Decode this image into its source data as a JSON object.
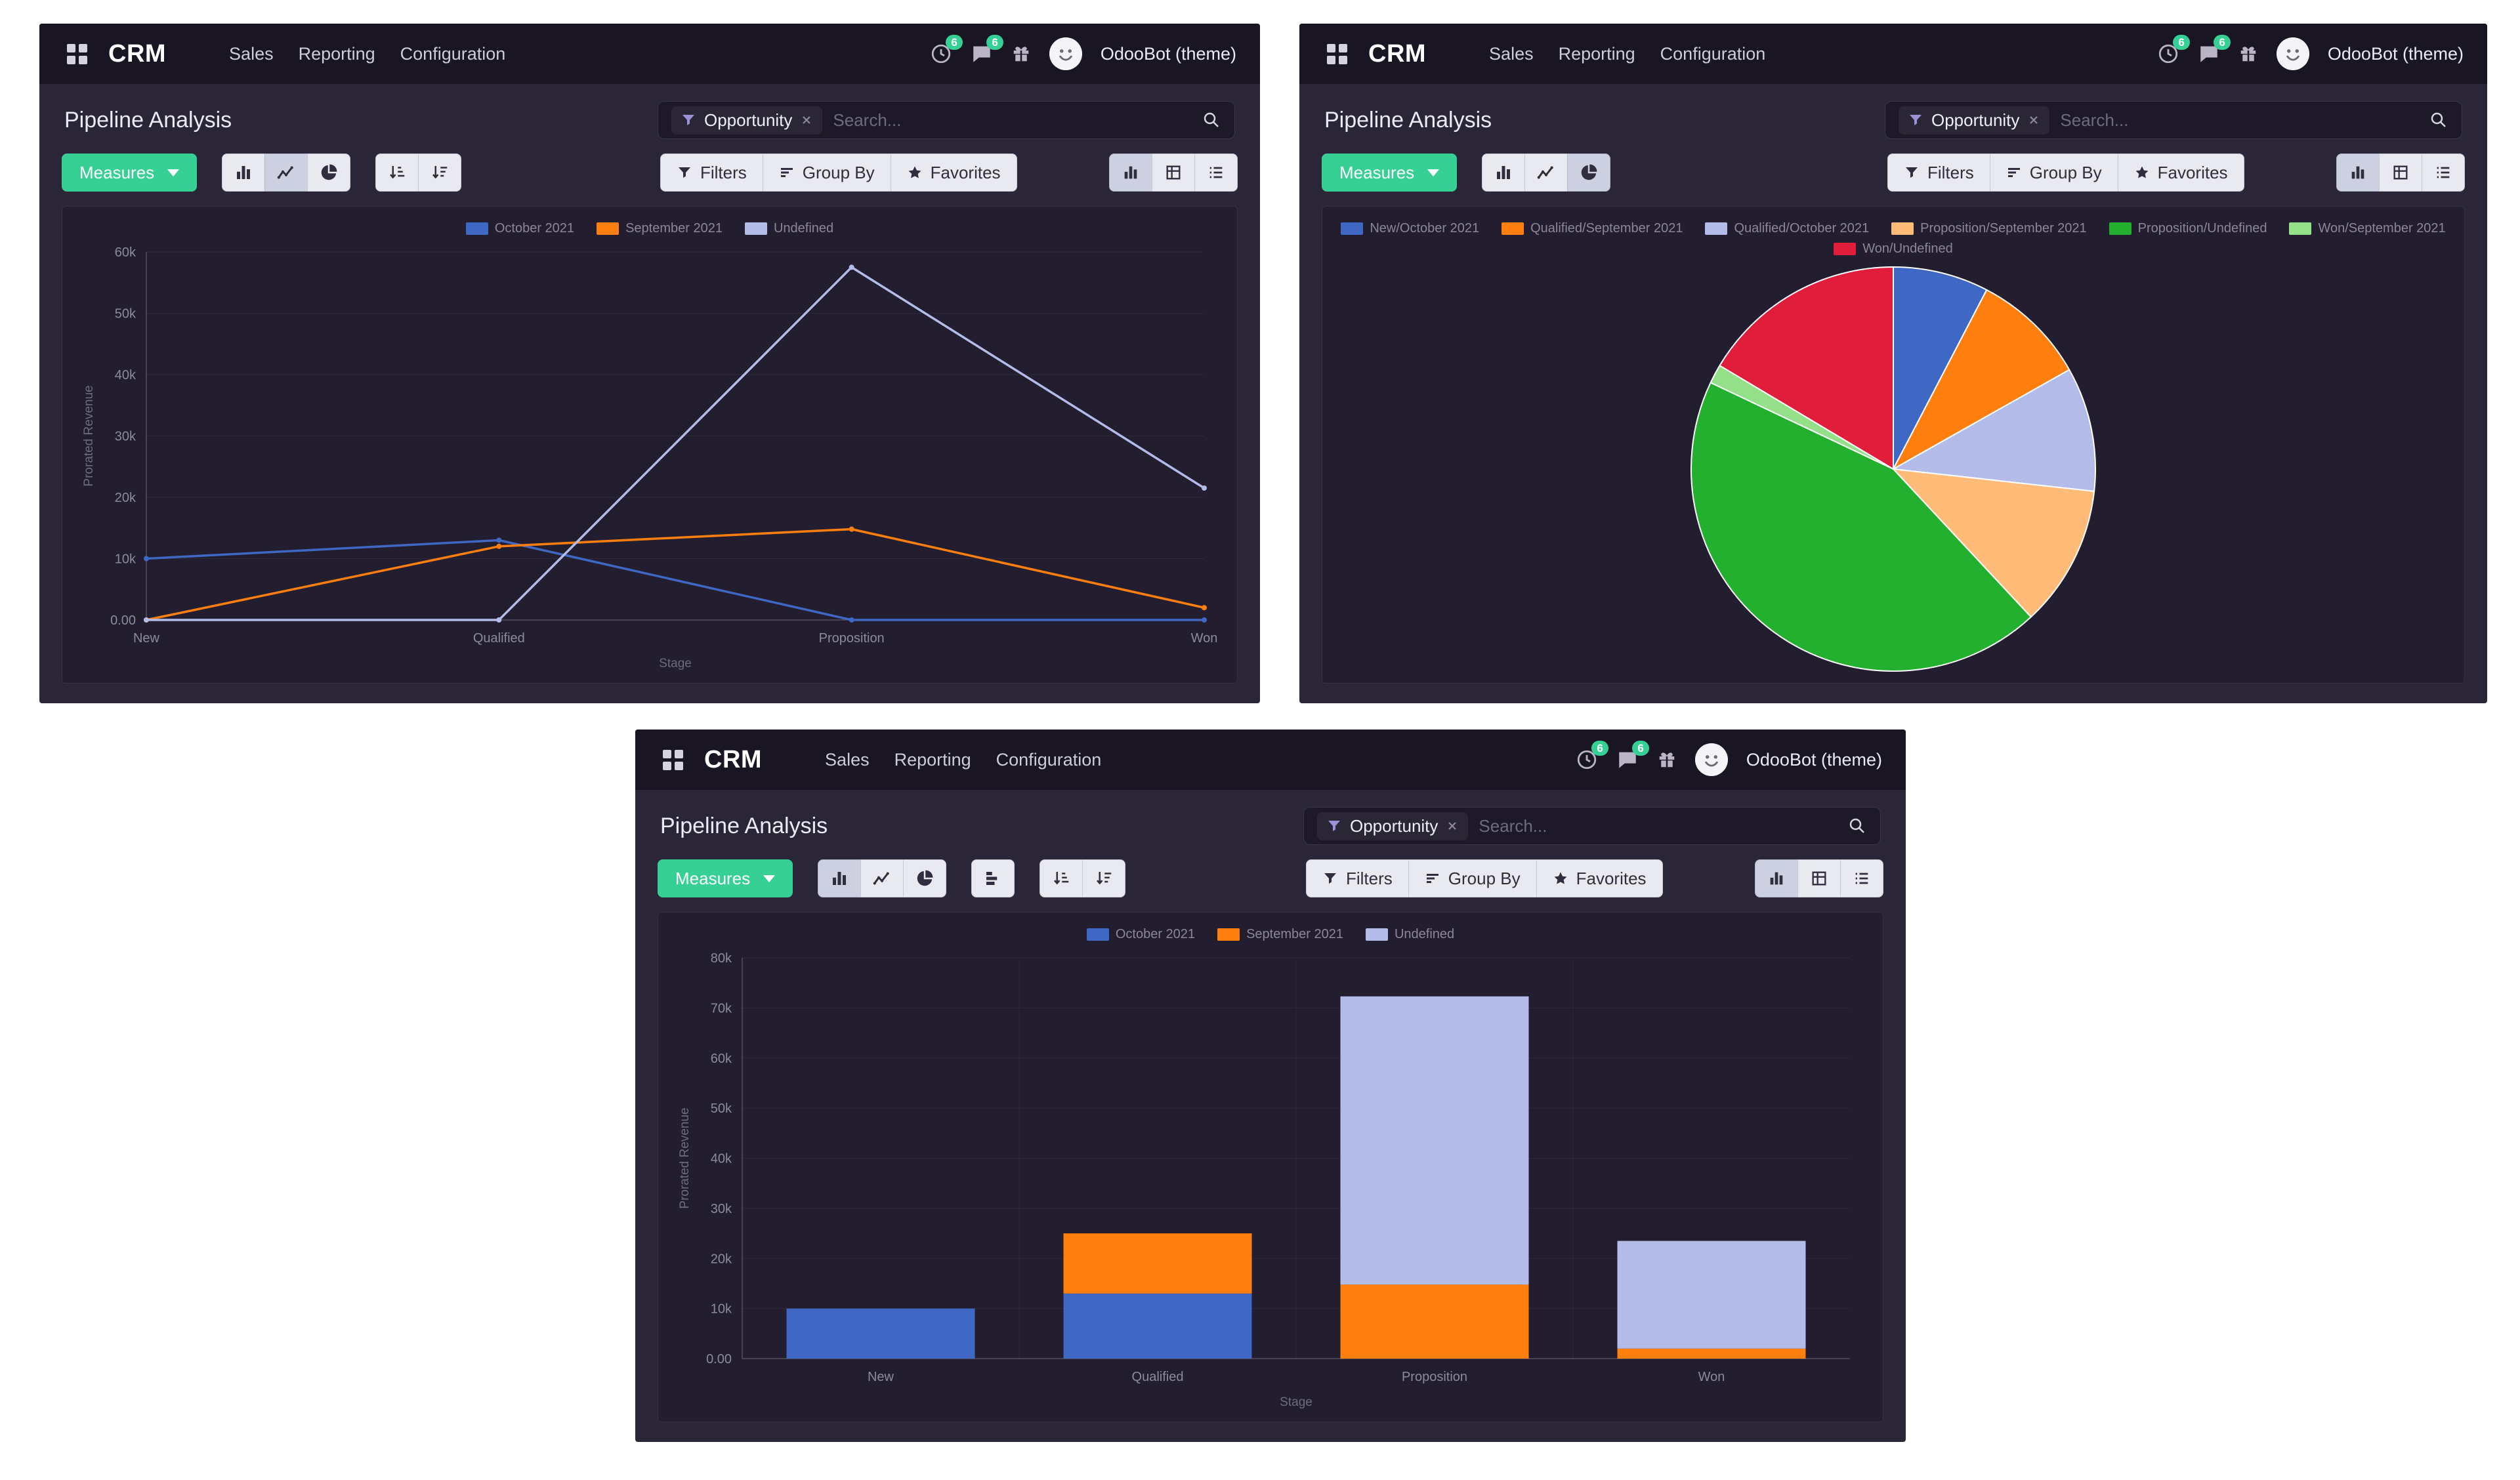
{
  "page": {
    "background": "#ffffff"
  },
  "windows": [
    {
      "navbar": {
        "app_name": "CRM",
        "menu_items": [
          "Sales",
          "Reporting",
          "Configuration"
        ],
        "activity_badge": "6",
        "message_badge": "6",
        "user_name": "OdooBot (theme)"
      },
      "header": {
        "title": "Pipeline Analysis"
      },
      "search": {
        "facet": "Opportunity",
        "placeholder": "Search..."
      },
      "controls": {
        "measures": "Measures",
        "filters": "Filters",
        "group_by": "Group By",
        "favorites": "Favorites"
      },
      "toolbar": {
        "active_chart": "line",
        "active_view": "graph",
        "show_stacked": false,
        "show_sort": true
      },
      "chart_index": 0
    },
    {
      "navbar": {
        "app_name": "CRM",
        "menu_items": [
          "Sales",
          "Reporting",
          "Configuration"
        ],
        "activity_badge": "6",
        "message_badge": "6",
        "user_name": "OdooBot (theme)"
      },
      "header": {
        "title": "Pipeline Analysis"
      },
      "search": {
        "facet": "Opportunity",
        "placeholder": "Search..."
      },
      "controls": {
        "measures": "Measures",
        "filters": "Filters",
        "group_by": "Group By",
        "favorites": "Favorites"
      },
      "toolbar": {
        "active_chart": "pie",
        "active_view": "graph",
        "show_stacked": false,
        "show_sort": false
      },
      "chart_index": 1
    },
    {
      "navbar": {
        "app_name": "CRM",
        "menu_items": [
          "Sales",
          "Reporting",
          "Configuration"
        ],
        "activity_badge": "6",
        "message_badge": "6",
        "user_name": "OdooBot (theme)"
      },
      "header": {
        "title": "Pipeline Analysis"
      },
      "search": {
        "facet": "Opportunity",
        "placeholder": "Search..."
      },
      "controls": {
        "measures": "Measures",
        "filters": "Filters",
        "group_by": "Group By",
        "favorites": "Favorites"
      },
      "toolbar": {
        "active_chart": "bar",
        "active_view": "graph",
        "show_stacked": true,
        "show_sort": true
      },
      "chart_index": 2
    }
  ],
  "chart_data": [
    {
      "type": "line",
      "title": "",
      "xlabel": "Stage",
      "ylabel": "Prorated Revenue",
      "categories": [
        "New",
        "Qualified",
        "Proposition",
        "Won"
      ],
      "series": [
        {
          "name": "October 2021",
          "color": "#3e68c4",
          "values": [
            10000,
            13000,
            0,
            0
          ]
        },
        {
          "name": "September 2021",
          "color": "#ff7f0e",
          "values": [
            0,
            12000,
            14800,
            2000
          ]
        },
        {
          "name": "Undefined",
          "color": "#b3bce8",
          "values": [
            0,
            0,
            57500,
            21500
          ]
        }
      ],
      "ylim": [
        0,
        60000
      ],
      "yticks": [
        {
          "value": 0,
          "label": "0.00"
        },
        {
          "value": 10000,
          "label": "10k"
        },
        {
          "value": 20000,
          "label": "20k"
        },
        {
          "value": 30000,
          "label": "30k"
        },
        {
          "value": 40000,
          "label": "40k"
        },
        {
          "value": 50000,
          "label": "50k"
        },
        {
          "value": 60000,
          "label": "60k"
        }
      ],
      "legend_position": "top",
      "grid": false
    },
    {
      "type": "pie",
      "title": "",
      "labels": [
        "New/October 2021",
        "Qualified/September 2021",
        "Qualified/October 2021",
        "Proposition/September 2021",
        "Proposition/Undefined",
        "Won/September 2021",
        "Won/Undefined"
      ],
      "values": [
        10000,
        12000,
        13000,
        14800,
        57500,
        2000,
        21500
      ],
      "colors": [
        "#3e68c4",
        "#ff7f0e",
        "#b3bce8",
        "#ffbb78",
        "#22b02e",
        "#93e088",
        "#e11d3c"
      ],
      "legend_position": "top"
    },
    {
      "type": "bar",
      "stacked": true,
      "title": "",
      "xlabel": "Stage",
      "ylabel": "Prorated Revenue",
      "categories": [
        "New",
        "Qualified",
        "Proposition",
        "Won"
      ],
      "series": [
        {
          "name": "October 2021",
          "color": "#3e68c4",
          "values": [
            10000,
            13000,
            0,
            0
          ]
        },
        {
          "name": "September 2021",
          "color": "#ff7f0e",
          "values": [
            0,
            12000,
            14800,
            2000
          ]
        },
        {
          "name": "Undefined",
          "color": "#b3bce8",
          "values": [
            0,
            0,
            57500,
            21500
          ]
        }
      ],
      "ylim": [
        0,
        80000
      ],
      "yticks": [
        {
          "value": 0,
          "label": "0.00"
        },
        {
          "value": 10000,
          "label": "10k"
        },
        {
          "value": 20000,
          "label": "20k"
        },
        {
          "value": 30000,
          "label": "30k"
        },
        {
          "value": 40000,
          "label": "40k"
        },
        {
          "value": 50000,
          "label": "50k"
        },
        {
          "value": 60000,
          "label": "60k"
        },
        {
          "value": 70000,
          "label": "70k"
        },
        {
          "value": 80000,
          "label": "80k"
        }
      ],
      "legend_position": "top",
      "grid": false
    }
  ]
}
